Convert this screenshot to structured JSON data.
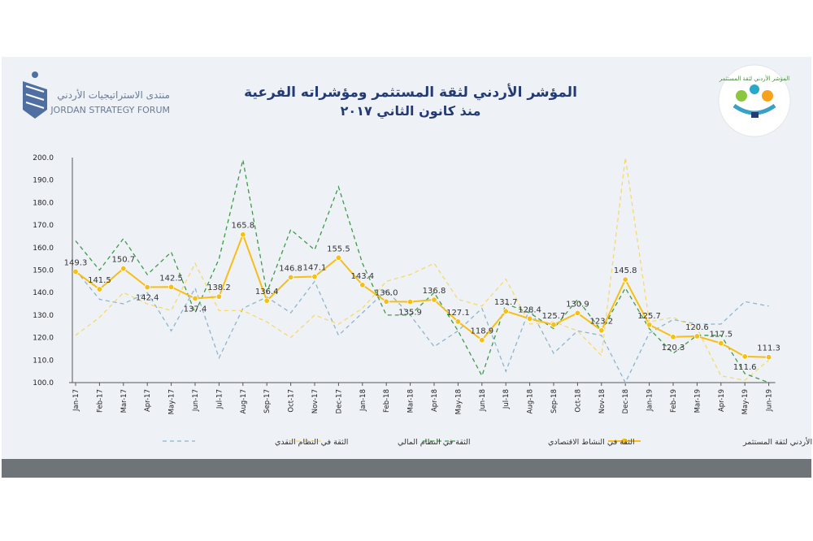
{
  "header": {
    "title_line1": "المؤشر الأردني لثقة المستثمر ومؤشراته الفرعية",
    "title_line2": "منذ كانون الثاني ٢٠١٧",
    "org_name_ar": "منتدى الاستراتيجيات الأردني",
    "org_name_en": "JORDAN STRATEGY FORUM",
    "index_logo_text": "المؤشر الأردني لثقة المستثمر"
  },
  "colors": {
    "monetary": "#8fb4cc",
    "financial": "#f6d96a",
    "economic": "#3f9a48",
    "main": "#f7be16",
    "title": "#243a73",
    "axis": "#555555"
  },
  "chart_data": {
    "type": "line",
    "title": "المؤشر الأردني لثقة المستثمر ومؤشراته الفرعية منذ كانون الثاني ٢٠١٧",
    "xlabel": "",
    "ylabel": "",
    "ylim": [
      100,
      200
    ],
    "yticks": [
      "100.0",
      "110.0",
      "120.0",
      "130.0",
      "140.0",
      "150.0",
      "160.0",
      "170.0",
      "180.0",
      "190.0",
      "200.0"
    ],
    "grid": false,
    "legend_position": "bottom",
    "categories": [
      "Jan-17",
      "Feb-17",
      "Mar-17",
      "Apr-17",
      "May-17",
      "Jun-17",
      "Jul-17",
      "Aug-17",
      "Sep-17",
      "Oct-17",
      "Nov-17",
      "Dec-17",
      "Jan-18",
      "Feb-18",
      "Mar-18",
      "Apr-18",
      "May-18",
      "Jun-18",
      "Jul-18",
      "Aug-18",
      "Sep-18",
      "Oct-18",
      "Nov-18",
      "Dec-18",
      "Jan-19",
      "Feb-19",
      "Mar-19",
      "Apr-19",
      "May-19",
      "Jun-19"
    ],
    "series": [
      {
        "key": "monetary",
        "name": "الثقة في النظام النقدي",
        "style": "dashed",
        "values": [
          150,
          137,
          135,
          140,
          123,
          142,
          111,
          133,
          138,
          131,
          145,
          121,
          131,
          141,
          130,
          116,
          123,
          133,
          105,
          133,
          113,
          123,
          121,
          100,
          122,
          128,
          126,
          126,
          136,
          134
        ]
      },
      {
        "key": "financial",
        "name": "الثقة في النظام المالي",
        "style": "dashed",
        "values": [
          121,
          129,
          140,
          135,
          132,
          153,
          132,
          132,
          127,
          120,
          130,
          126,
          133,
          145,
          148,
          153,
          137,
          134,
          146,
          126,
          127,
          123,
          112,
          200,
          127,
          129,
          124,
          103,
          101,
          110
        ]
      },
      {
        "key": "economic",
        "name": "الثقة في النشاط الاقتصادي",
        "style": "dashed",
        "values": [
          163,
          150,
          164,
          148,
          158,
          131,
          155,
          199,
          140,
          168,
          159,
          187,
          153,
          130,
          130,
          140,
          123,
          103,
          135,
          131,
          124,
          137,
          123,
          142,
          124,
          113,
          121,
          121,
          104,
          100
        ]
      },
      {
        "key": "main",
        "name": "المؤشر الأردني لثقة المستثمر",
        "style": "solid-markers",
        "values": [
          149.3,
          141.5,
          150.7,
          142.4,
          142.5,
          137.4,
          138.2,
          165.8,
          136.4,
          146.8,
          147.1,
          155.5,
          143.4,
          136.0,
          135.9,
          136.8,
          127.1,
          118.9,
          131.7,
          128.4,
          125.7,
          130.9,
          123.2,
          145.8,
          125.7,
          120.3,
          120.6,
          117.5,
          111.6,
          111.3
        ]
      }
    ],
    "data_labels": [
      "149.3",
      "141.5",
      "150.7",
      "142.4",
      "142.5",
      "137.4",
      "138.2",
      "165.8",
      "136.4",
      "146.8",
      "147.1",
      "155.5",
      "143.4",
      "136.0",
      "135.9",
      "136.8",
      "127.1",
      "118.9",
      "131.7",
      "128.4",
      "125.7",
      "130.9",
      "123.2",
      "145.8",
      "125.7",
      "120.3",
      "120.6",
      "117.5",
      "111.6",
      "111.3"
    ]
  }
}
